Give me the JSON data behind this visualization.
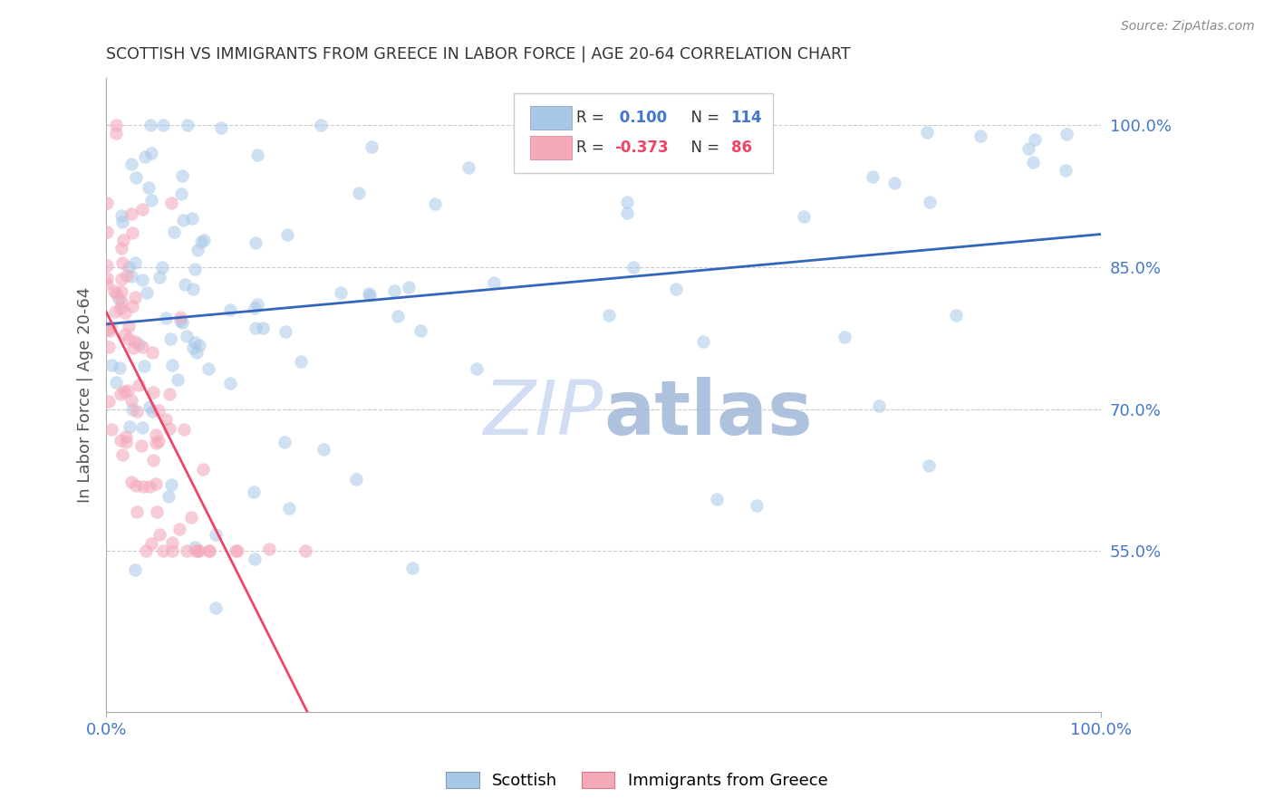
{
  "title": "SCOTTISH VS IMMIGRANTS FROM GREECE IN LABOR FORCE | AGE 20-64 CORRELATION CHART",
  "source": "Source: ZipAtlas.com",
  "ylabel": "In Labor Force | Age 20-64",
  "blue_label": "Scottish",
  "pink_label": "Immigrants from Greece",
  "blue_R": 0.1,
  "blue_N": 114,
  "pink_R": -0.373,
  "pink_N": 86,
  "blue_color": "#A8C8E8",
  "pink_color": "#F4AABB",
  "blue_line_color": "#3366BB",
  "pink_line_color": "#EE4466",
  "grid_color": "#CCCCCC",
  "title_color": "#333333",
  "axis_label_color": "#4477CC",
  "watermark": "ZIPatlas",
  "watermark_color": "#C8D8F0",
  "legend_box_blue": "#A8C8E8",
  "legend_box_pink": "#F4AABB",
  "xlim": [
    0.0,
    1.0
  ],
  "ylim": [
    0.38,
    1.05
  ],
  "ytick_values": [
    0.55,
    0.7,
    0.85,
    1.0
  ],
  "ytick_labels": [
    "55.0%",
    "70.0%",
    "85.0%",
    "100.0%"
  ],
  "blue_seed": 42,
  "pink_seed": 7
}
